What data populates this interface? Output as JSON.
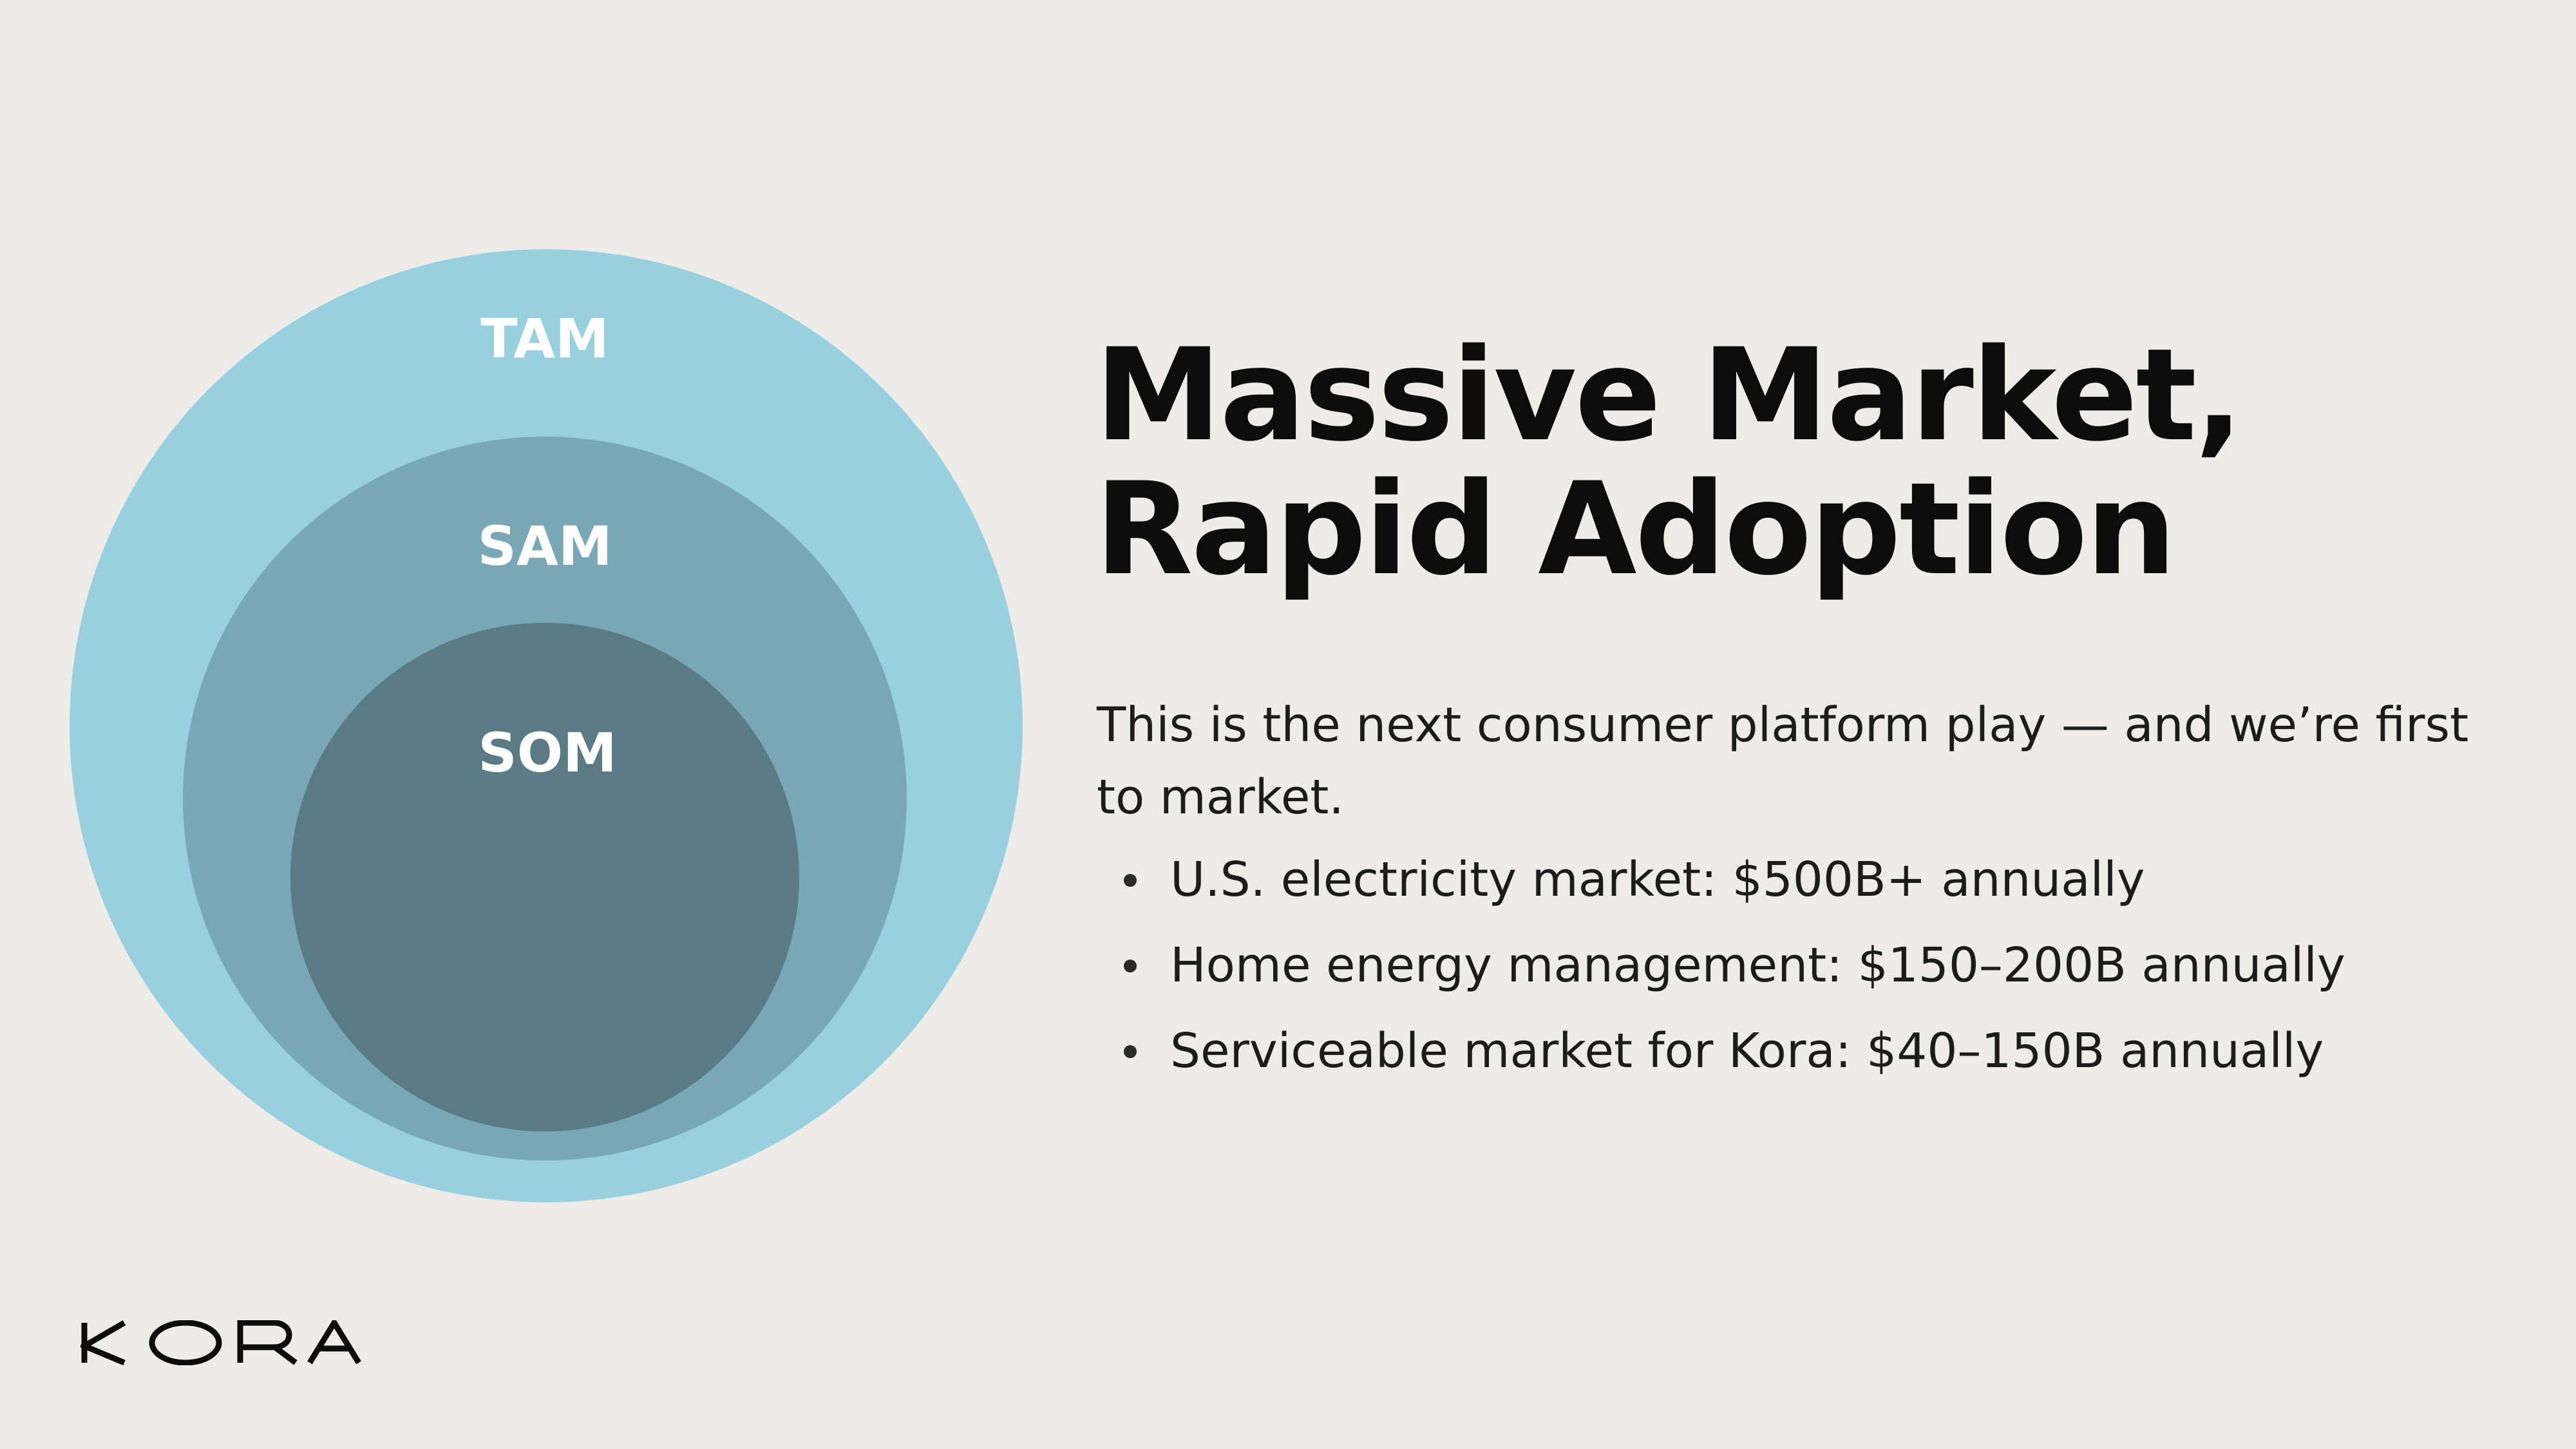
{
  "colors": {
    "background": "#edece8",
    "tam": "#98d0e0",
    "sam": "#78a8b6",
    "som": "#5a7b86",
    "circle_text": "#ffffff",
    "title_text": "#0c0c0c",
    "body_text": "#1c1c1c"
  },
  "diagram": {
    "circles": [
      {
        "id": "tam",
        "label": "TAM"
      },
      {
        "id": "sam",
        "label": "SAM"
      },
      {
        "id": "som",
        "label": "SOM"
      }
    ]
  },
  "title": {
    "line1": "Massive Market,",
    "line2": "Rapid Adoption"
  },
  "intro": "This is the next consumer platform play — and we’re first to market.",
  "bullets": [
    "U.S. electricity market: $500B+ annually",
    "Home energy management: $150–200B annually",
    "Serviceable market for Kora: $40–150B annually"
  ],
  "logo": {
    "text": "KORA"
  }
}
